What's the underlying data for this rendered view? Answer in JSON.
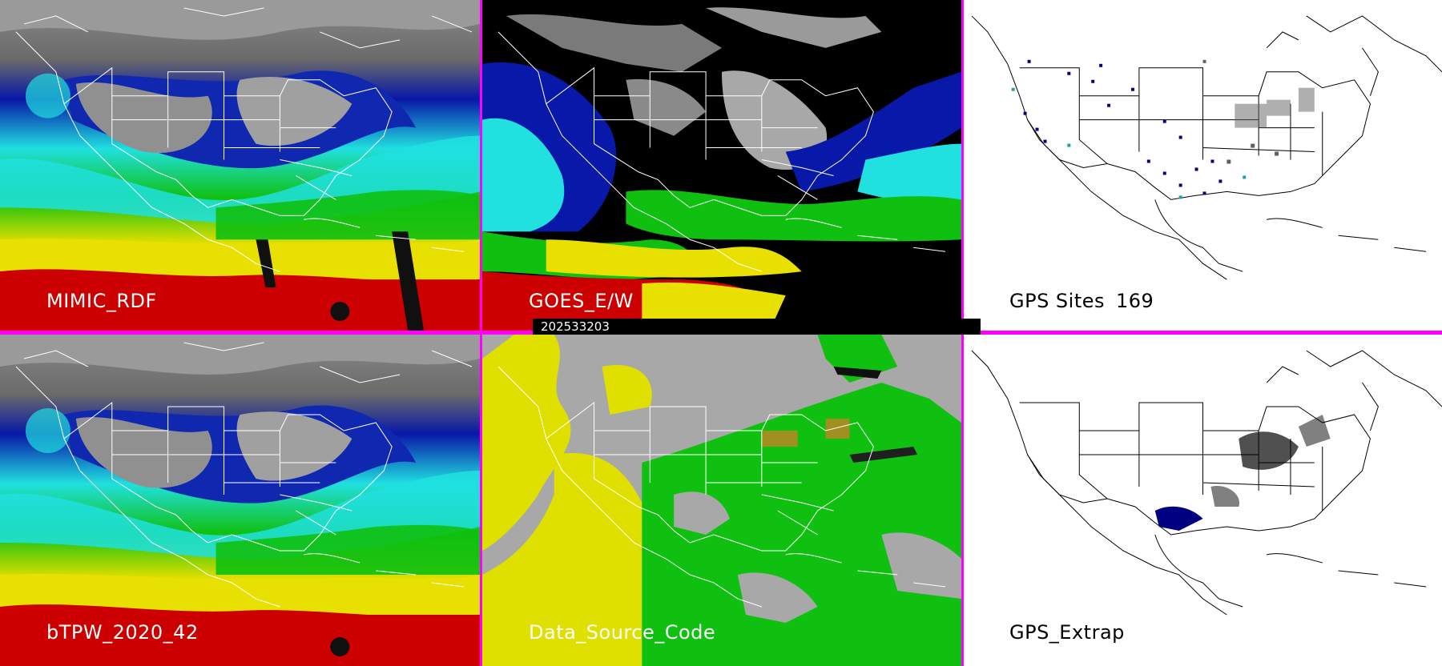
{
  "panels": {
    "mimic": {
      "label": "MIMIC_RDF"
    },
    "goes": {
      "label": "GOES_E/W"
    },
    "gps_sites": {
      "label": "GPS Sites",
      "count": "169"
    },
    "btpw": {
      "label": "bTPW_2020_42"
    },
    "data_source": {
      "label": "Data_Source_Code"
    },
    "gps_extrap": {
      "label": "GPS_Extrap"
    }
  },
  "timestamp": "202533203",
  "colors": {
    "separator": "#ff00ff",
    "tpw_red": "#cc0000",
    "tpw_yellow": "#e8e000",
    "tpw_green": "#10c010",
    "tpw_cyan": "#20e0e0",
    "tpw_blue": "#0818a8",
    "source_gray": "#a8a8a8",
    "source_yellow": "#e0e000",
    "source_green": "#10c010",
    "source_olive": "#a09020"
  }
}
